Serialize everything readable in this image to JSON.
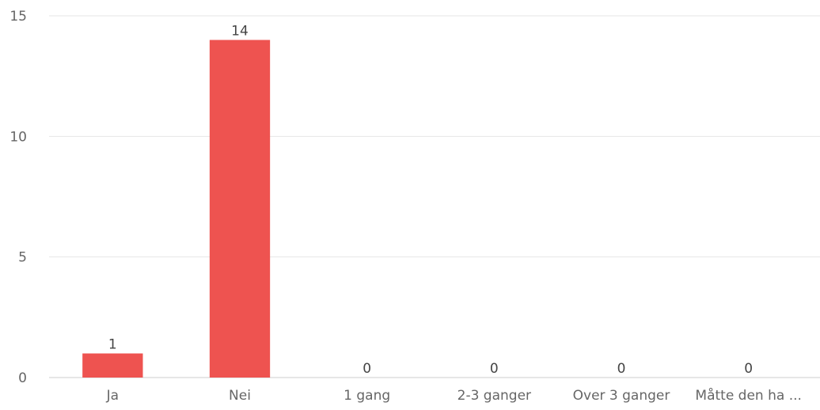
{
  "chart_data": {
    "type": "bar",
    "categories": [
      "Ja",
      "Nei",
      "1 gang",
      "2-3 ganger",
      "Over 3 ganger",
      "Måtte den ha ..."
    ],
    "values": [
      1,
      14,
      0,
      0,
      0,
      0
    ],
    "data_labels": [
      "1",
      "14",
      "0",
      "0",
      "0",
      "0"
    ],
    "title": "",
    "xlabel": "",
    "ylabel": "",
    "ylim": [
      0,
      15
    ],
    "yticks": [
      0,
      5,
      10,
      15
    ],
    "ytick_labels": [
      "0",
      "5",
      "10",
      "15"
    ],
    "grid": true,
    "bar_color": "#ee5350",
    "grid_color": "#e6e6e6"
  }
}
